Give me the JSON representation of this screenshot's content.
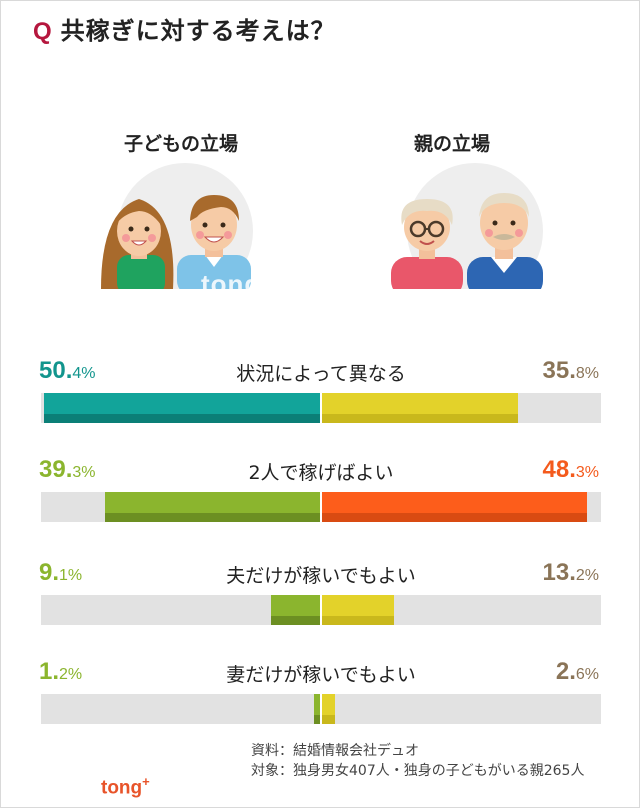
{
  "title": {
    "q": "Q",
    "text": "共稼ぎに対する考えは？"
  },
  "groups": {
    "left": "子どもの立場",
    "right": "親の立場"
  },
  "watermark": {
    "text": "tong",
    "sup": "+"
  },
  "colors": {
    "track": "#e2e2e2",
    "row_colors": [
      {
        "left": "#12a49a",
        "left_dark": "#0b7f77",
        "right": "#e3d22a",
        "right_dark": "#c9b81c",
        "left_text": "#12958d",
        "right_text": "#8a7457"
      },
      {
        "left": "#8bb52e",
        "left_dark": "#6c8f22",
        "right": "#fd5d1b",
        "right_dark": "#d94b12",
        "left_text": "#8bb52e",
        "right_text": "#f45a1c"
      },
      {
        "left": "#8bb52e",
        "left_dark": "#6c8f22",
        "right": "#e3d22a",
        "right_dark": "#c9b81c",
        "left_text": "#8bb52e",
        "right_text": "#8a7457"
      },
      {
        "left": "#8bb52e",
        "left_dark": "#6c8f22",
        "right": "#e3d22a",
        "right_dark": "#c9b81c",
        "left_text": "#8bb52e",
        "right_text": "#8a7457"
      }
    ]
  },
  "chart_data": {
    "type": "bar",
    "orientation": "horizontal-diverging",
    "title": "共稼ぎに対する考えは？",
    "categories": [
      "状況によって異なる",
      "2人で稼げばよい",
      "夫だけが稼いでもよい",
      "妻だけが稼いでもよい"
    ],
    "series": [
      {
        "name": "子どもの立場",
        "values": [
          50.4,
          39.3,
          9.1,
          1.2
        ]
      },
      {
        "name": "親の立場",
        "values": [
          35.8,
          48.3,
          13.2,
          2.6
        ]
      }
    ],
    "left_labels": [
      {
        "num": "50.",
        "dec": "4%"
      },
      {
        "num": "39.",
        "dec": "3%"
      },
      {
        "num": "9.",
        "dec": "1%"
      },
      {
        "num": "1.",
        "dec": "2%"
      }
    ],
    "right_labels": [
      {
        "num": "35.",
        "dec": "8%"
      },
      {
        "num": "48.",
        "dec": "3%"
      },
      {
        "num": "13.",
        "dec": "2%"
      },
      {
        "num": "2.",
        "dec": "6%"
      }
    ]
  },
  "source": {
    "line1": "資料：結婚情報会社デュオ",
    "line2": "対象：独身男女407人・独身の子どもがいる親265人"
  },
  "logo": {
    "text": "tong",
    "sup": "+"
  }
}
